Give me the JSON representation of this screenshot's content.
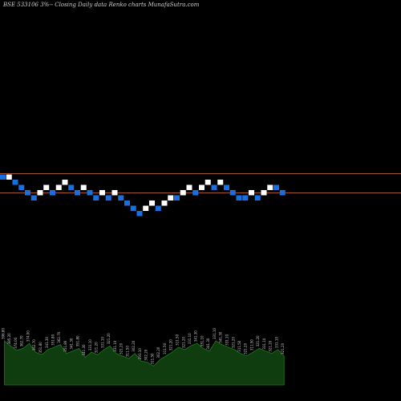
{
  "chart_data": {
    "type": "renko",
    "title": "BSE 533106  3%-- Closing Daily data  Renko  charts MunafaSutra.com",
    "colors": {
      "background": "#000000",
      "up_brick": "#ffffff",
      "down_brick": "#1a6fe0",
      "reference_line": "#a0522d",
      "volume_fill": "#0f3d0f",
      "volume_line": "#1e7a1e",
      "text": "#cfcfcf"
    },
    "brick_size_percent": 3,
    "reference_levels": [
      1,
      -2
    ],
    "bricks": [
      {
        "dir": "down",
        "level": 1
      },
      {
        "dir": "up",
        "level": 1
      },
      {
        "dir": "down",
        "level": 0
      },
      {
        "dir": "down",
        "level": -1
      },
      {
        "dir": "down",
        "level": -2
      },
      {
        "dir": "down",
        "level": -3
      },
      {
        "dir": "up",
        "level": -2
      },
      {
        "dir": "up",
        "level": -1
      },
      {
        "dir": "down",
        "level": -2
      },
      {
        "dir": "up",
        "level": -1
      },
      {
        "dir": "up",
        "level": 0
      },
      {
        "dir": "down",
        "level": -1
      },
      {
        "dir": "down",
        "level": -2
      },
      {
        "dir": "up",
        "level": -1
      },
      {
        "dir": "down",
        "level": -2
      },
      {
        "dir": "down",
        "level": -3
      },
      {
        "dir": "up",
        "level": -2
      },
      {
        "dir": "down",
        "level": -3
      },
      {
        "dir": "up",
        "level": -2
      },
      {
        "dir": "down",
        "level": -3
      },
      {
        "dir": "down",
        "level": -4
      },
      {
        "dir": "down",
        "level": -5
      },
      {
        "dir": "down",
        "level": -6
      },
      {
        "dir": "up",
        "level": -5
      },
      {
        "dir": "up",
        "level": -4
      },
      {
        "dir": "down",
        "level": -5
      },
      {
        "dir": "up",
        "level": -4
      },
      {
        "dir": "up",
        "level": -3
      },
      {
        "dir": "down",
        "level": -3
      },
      {
        "dir": "up",
        "level": -2
      },
      {
        "dir": "up",
        "level": -1
      },
      {
        "dir": "down",
        "level": -2
      },
      {
        "dir": "up",
        "level": -1
      },
      {
        "dir": "up",
        "level": 0
      },
      {
        "dir": "down",
        "level": -1
      },
      {
        "dir": "up",
        "level": 0
      },
      {
        "dir": "down",
        "level": -1
      },
      {
        "dir": "down",
        "level": -2
      },
      {
        "dir": "down",
        "level": -3
      },
      {
        "dir": "down",
        "level": -3
      },
      {
        "dir": "up",
        "level": -2
      },
      {
        "dir": "down",
        "level": -3
      },
      {
        "dir": "up",
        "level": -2
      },
      {
        "dir": "up",
        "level": -1
      },
      {
        "dir": "down",
        "level": -1
      },
      {
        "dir": "down",
        "level": -2
      }
    ],
    "volume": {
      "values": [
        70,
        62,
        55,
        58,
        66,
        52,
        48,
        56,
        60,
        64,
        50,
        54,
        58,
        44,
        52,
        48,
        56,
        62,
        50,
        46,
        42,
        50,
        38,
        36,
        30,
        40,
        46,
        52,
        60,
        56,
        62,
        66,
        58,
        54,
        70,
        64,
        60,
        56,
        50,
        46,
        52,
        58,
        54,
        50,
        56,
        46
      ],
      "labels": [
        "396.80",
        "385.20",
        "374.00",
        "362.70",
        "374.00",
        "362.70",
        "351.80",
        "341.30",
        "351.80",
        "362.70",
        "351.80",
        "341.30",
        "351.80",
        "341.30",
        "331.10",
        "321.20",
        "331.10",
        "321.20",
        "331.10",
        "321.20",
        "311.50",
        "302.20",
        "293.10",
        "302.20",
        "311.50",
        "302.20",
        "311.50",
        "321.20",
        "311.50",
        "321.20",
        "331.10",
        "341.30",
        "331.10",
        "341.30",
        "331.10",
        "341.30",
        "331.10",
        "321.20",
        "311.50",
        "321.20",
        "311.50",
        "321.20",
        "331.10",
        "321.20",
        "331.10",
        "321.20"
      ]
    }
  }
}
